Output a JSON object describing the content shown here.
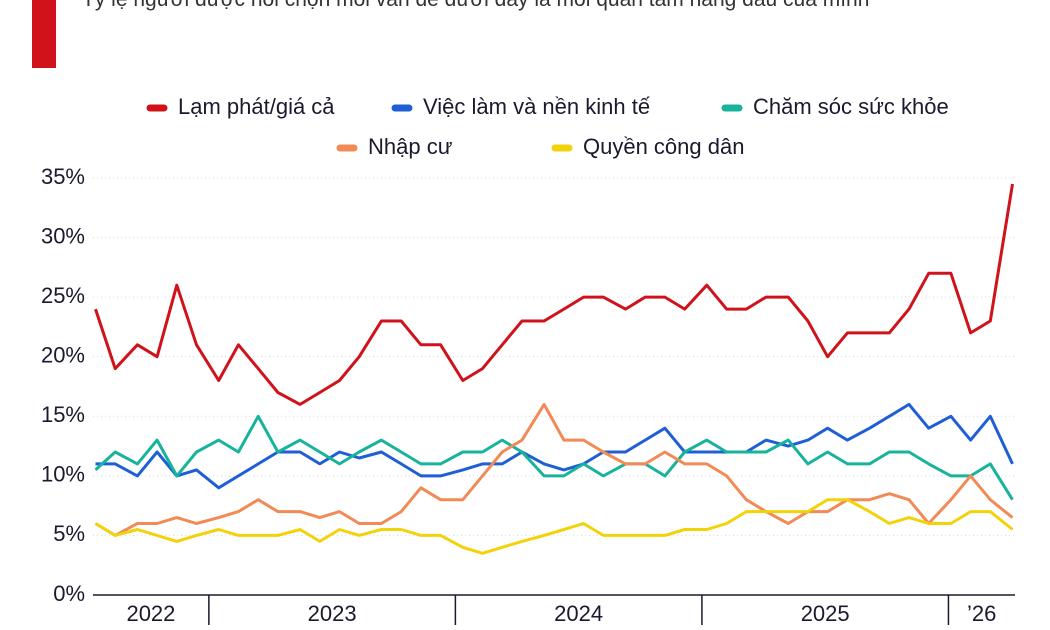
{
  "chart_data": {
    "type": "line",
    "subtitle": "Tỷ lệ người được hỏi chọn mỗi vấn đề dưới đây là mối quan tâm hàng đầu của mình",
    "x": [
      2022.54,
      2022.62,
      2022.71,
      2022.79,
      2022.87,
      2022.95,
      2023.04,
      2023.12,
      2023.2,
      2023.28,
      2023.37,
      2023.45,
      2023.53,
      2023.61,
      2023.7,
      2023.78,
      2023.86,
      2023.94,
      2024.03,
      2024.11,
      2024.19,
      2024.27,
      2024.36,
      2024.44,
      2024.52,
      2024.6,
      2024.69,
      2024.77,
      2024.85,
      2024.93,
      2025.02,
      2025.1,
      2025.18,
      2025.26,
      2025.35,
      2025.43,
      2025.51,
      2025.59,
      2025.68,
      2025.76,
      2025.84,
      2025.92,
      2026.01,
      2026.09,
      2026.17,
      2026.26
    ],
    "xlim": [
      2022.53,
      2026.27
    ],
    "xticks": [
      2022,
      2023,
      2024,
      2025,
      {
        "value": 2026,
        "label": "’26"
      }
    ],
    "ylim": [
      0,
      35
    ],
    "yticks": [
      {
        "value": 0,
        "label": "0%"
      },
      {
        "value": 5,
        "label": "5%"
      },
      {
        "value": 10,
        "label": "10%"
      },
      {
        "value": 15,
        "label": "15%"
      },
      {
        "value": 20,
        "label": "20%"
      },
      {
        "value": 25,
        "label": "25%"
      },
      {
        "value": 30,
        "label": "30%"
      },
      {
        "value": 35,
        "label": "35%"
      }
    ],
    "grid": true,
    "series": [
      {
        "name": "Lạm phát/giá cả",
        "color": "#d0121b",
        "values": [
          24,
          19,
          21,
          20,
          26,
          21,
          18,
          21,
          19,
          17,
          16,
          17,
          18,
          20,
          23,
          23,
          21,
          21,
          18,
          19,
          21,
          23,
          23,
          24,
          25,
          25,
          24,
          25,
          25,
          24,
          26,
          24,
          24,
          25,
          25,
          23,
          20,
          22,
          22,
          22,
          24,
          27,
          27,
          22,
          23,
          34.5
        ]
      },
      {
        "name": "Việc làm và nền kinh tế",
        "color": "#1f5fd6",
        "values": [
          11,
          11,
          10,
          12,
          10,
          10.5,
          9,
          10,
          11,
          12,
          12,
          11,
          12,
          11.5,
          12,
          11,
          10,
          10,
          10.5,
          11,
          11,
          12,
          11,
          10.5,
          11,
          12,
          12,
          13,
          14,
          12,
          12,
          12,
          12,
          13,
          12.5,
          13,
          14,
          13,
          14,
          15,
          16,
          14,
          15,
          13,
          15,
          11
        ]
      },
      {
        "name": "Chăm sóc sức khỏe",
        "color": "#17b39b",
        "values": [
          10.5,
          12,
          11,
          13,
          10,
          12,
          13,
          12,
          15,
          12,
          13,
          12,
          11,
          12,
          13,
          12,
          11,
          11,
          12,
          12,
          13,
          12,
          10,
          10,
          11,
          10,
          11,
          11,
          10,
          12,
          13,
          12,
          12,
          12,
          13,
          11,
          12,
          11,
          11,
          12,
          12,
          11,
          10,
          10,
          11,
          8
        ]
      },
      {
        "name": "Nhập cư",
        "color": "#f28a55",
        "values": [
          6,
          5,
          6,
          6,
          6.5,
          6,
          6.5,
          7,
          8,
          7,
          7,
          6.5,
          7,
          6,
          6,
          7,
          9,
          8,
          8,
          10,
          12,
          13,
          16,
          13,
          13,
          12,
          11,
          11,
          12,
          11,
          11,
          10,
          8,
          7,
          6,
          7,
          7,
          8,
          8,
          8.5,
          8,
          6,
          8,
          10,
          8,
          6.5
        ]
      },
      {
        "name": "Quyền công dân",
        "color": "#f4d20a",
        "values": [
          6,
          5,
          5.5,
          5,
          4.5,
          5,
          5.5,
          5,
          5,
          5,
          5.5,
          4.5,
          5.5,
          5,
          5.5,
          5.5,
          5,
          5,
          4,
          3.5,
          4,
          4.5,
          5,
          5.5,
          6,
          5,
          5,
          5,
          5,
          5.5,
          5.5,
          6,
          7,
          7,
          7,
          7,
          8,
          8,
          7,
          6,
          6.5,
          6,
          6,
          7,
          7,
          5.5
        ]
      }
    ]
  }
}
